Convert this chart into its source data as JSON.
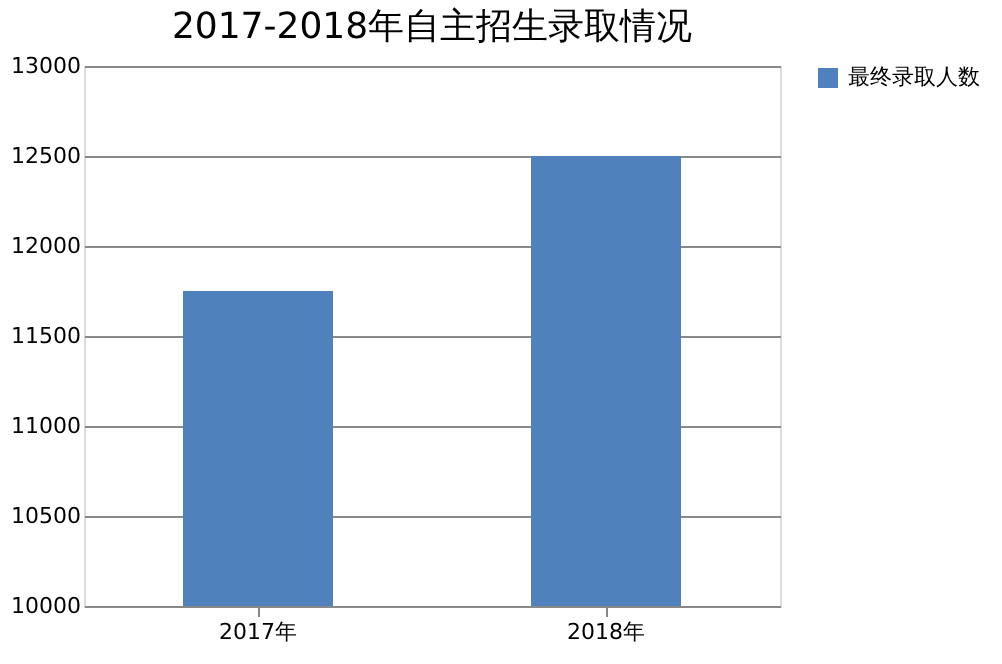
{
  "chart_data": {
    "type": "bar",
    "title": "2017-2018年自主招生录取情况",
    "categories": [
      "2017年",
      "2018年"
    ],
    "series": [
      {
        "name": "最终录取人数",
        "color": "#4f81bd",
        "values": [
          11750,
          12500
        ]
      }
    ],
    "ylim": [
      10000,
      13000
    ],
    "yticks": [
      10000,
      10500,
      11000,
      11500,
      12000,
      12500,
      13000
    ],
    "grid": "y",
    "legend": "right"
  }
}
